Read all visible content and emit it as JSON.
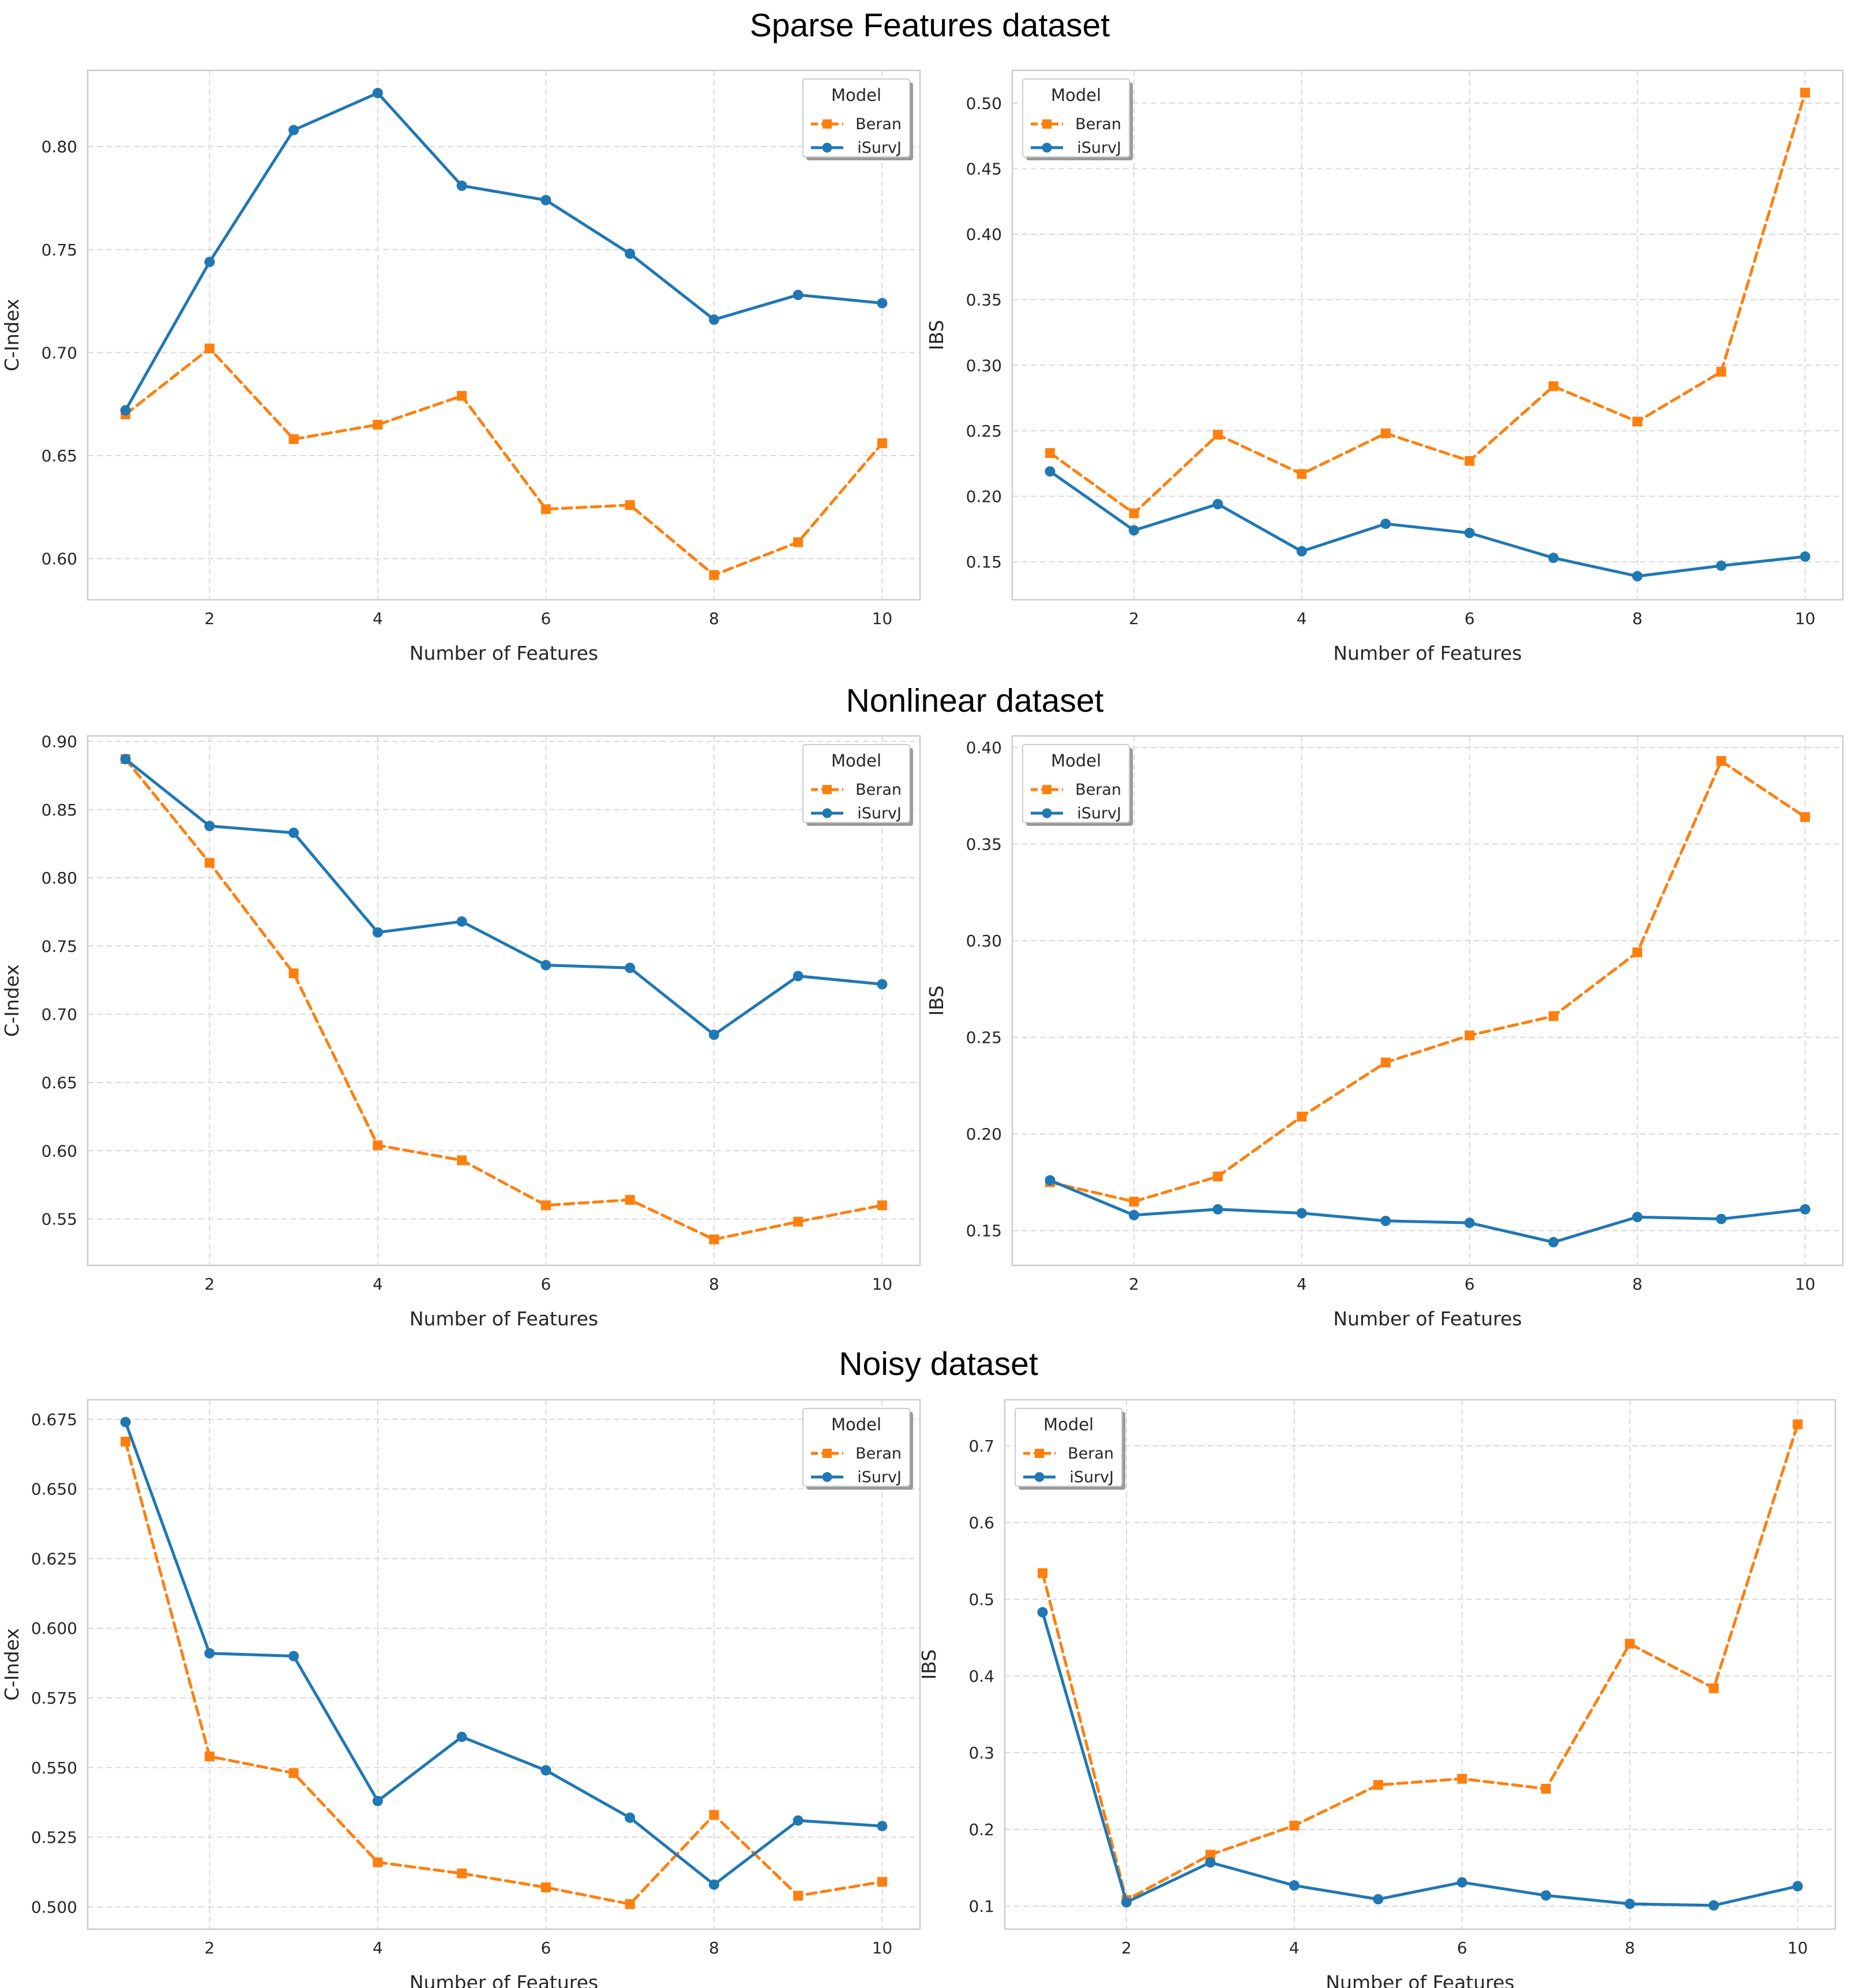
{
  "figure": {
    "sections": [
      "Sparse Features dataset",
      "Nonlinear dataset",
      "Noisy dataset"
    ]
  },
  "legend": {
    "title": "Model"
  },
  "chart_data": [
    {
      "type": "line",
      "section": "Sparse Features dataset",
      "title": "",
      "xlabel": "Number of Features",
      "ylabel": "C-Index",
      "x": [
        1,
        2,
        3,
        4,
        5,
        6,
        7,
        8,
        9,
        10
      ],
      "xticks": [
        2,
        4,
        6,
        8,
        10
      ],
      "xtick_labels": [
        "2",
        "4",
        "6",
        "8",
        "10"
      ],
      "yticks": [
        0.6,
        0.65,
        0.7,
        0.75,
        0.8
      ],
      "ytick_labels": [
        "0.60",
        "0.65",
        "0.70",
        "0.75",
        "0.80"
      ],
      "xlim": [
        0.55,
        10.45
      ],
      "ylim": [
        0.58,
        0.837
      ],
      "grid": true,
      "legend_position": "upper right",
      "series": [
        {
          "name": "Beran",
          "color": "#ff7f0e",
          "marker": "square",
          "linestyle": "dashed",
          "values": [
            0.67,
            0.702,
            0.658,
            0.665,
            0.679,
            0.624,
            0.626,
            0.592,
            0.608,
            0.656
          ]
        },
        {
          "name": "iSurvJ",
          "color": "#1f77b4",
          "marker": "circle",
          "linestyle": "solid",
          "values": [
            0.672,
            0.744,
            0.808,
            0.826,
            0.781,
            0.774,
            0.748,
            0.716,
            0.728,
            0.724
          ]
        }
      ]
    },
    {
      "type": "line",
      "section": "Sparse Features dataset",
      "title": "",
      "xlabel": "Number of Features",
      "ylabel": "IBS",
      "x": [
        1,
        2,
        3,
        4,
        5,
        6,
        7,
        8,
        9,
        10
      ],
      "xticks": [
        2,
        4,
        6,
        8,
        10
      ],
      "xtick_labels": [
        "2",
        "4",
        "6",
        "8",
        "10"
      ],
      "yticks": [
        0.15,
        0.2,
        0.25,
        0.3,
        0.35,
        0.4,
        0.45,
        0.5
      ],
      "ytick_labels": [
        "0.15",
        "0.20",
        "0.25",
        "0.30",
        "0.35",
        "0.40",
        "0.45",
        "0.50"
      ],
      "xlim": [
        0.55,
        10.45
      ],
      "ylim": [
        0.121,
        0.525
      ],
      "grid": true,
      "legend_position": "upper left",
      "series": [
        {
          "name": "Beran",
          "color": "#ff7f0e",
          "marker": "square",
          "linestyle": "dashed",
          "values": [
            0.233,
            0.187,
            0.247,
            0.217,
            0.248,
            0.227,
            0.284,
            0.257,
            0.295,
            0.508
          ]
        },
        {
          "name": "iSurvJ",
          "color": "#1f77b4",
          "marker": "circle",
          "linestyle": "solid",
          "values": [
            0.219,
            0.174,
            0.194,
            0.158,
            0.179,
            0.172,
            0.153,
            0.139,
            0.147,
            0.154
          ]
        }
      ]
    },
    {
      "type": "line",
      "section": "Nonlinear dataset",
      "title": "",
      "xlabel": "Number of Features",
      "ylabel": "C-Index",
      "x": [
        1,
        2,
        3,
        4,
        5,
        6,
        7,
        8,
        9,
        10
      ],
      "xticks": [
        2,
        4,
        6,
        8,
        10
      ],
      "xtick_labels": [
        "2",
        "4",
        "6",
        "8",
        "10"
      ],
      "yticks": [
        0.55,
        0.6,
        0.65,
        0.7,
        0.75,
        0.8,
        0.85,
        0.9
      ],
      "ytick_labels": [
        "0.55",
        "0.60",
        "0.65",
        "0.70",
        "0.75",
        "0.80",
        "0.85",
        "0.90"
      ],
      "xlim": [
        0.55,
        10.45
      ],
      "ylim": [
        0.516,
        0.904
      ],
      "grid": true,
      "legend_position": "upper right",
      "series": [
        {
          "name": "Beran",
          "color": "#ff7f0e",
          "marker": "square",
          "linestyle": "dashed",
          "values": [
            0.887,
            0.811,
            0.73,
            0.604,
            0.593,
            0.56,
            0.564,
            0.535,
            0.548,
            0.56
          ]
        },
        {
          "name": "iSurvJ",
          "color": "#1f77b4",
          "marker": "circle",
          "linestyle": "solid",
          "values": [
            0.887,
            0.838,
            0.833,
            0.76,
            0.768,
            0.736,
            0.734,
            0.685,
            0.728,
            0.722
          ]
        }
      ]
    },
    {
      "type": "line",
      "section": "Nonlinear dataset",
      "title": "",
      "xlabel": "Number of Features",
      "ylabel": "IBS",
      "x": [
        1,
        2,
        3,
        4,
        5,
        6,
        7,
        8,
        9,
        10
      ],
      "xticks": [
        2,
        4,
        6,
        8,
        10
      ],
      "xtick_labels": [
        "2",
        "4",
        "6",
        "8",
        "10"
      ],
      "yticks": [
        0.15,
        0.2,
        0.25,
        0.3,
        0.35,
        0.4
      ],
      "ytick_labels": [
        "0.15",
        "0.20",
        "0.25",
        "0.30",
        "0.35",
        "0.40"
      ],
      "xlim": [
        0.55,
        10.45
      ],
      "ylim": [
        0.132,
        0.406
      ],
      "grid": true,
      "legend_position": "upper left",
      "series": [
        {
          "name": "Beran",
          "color": "#ff7f0e",
          "marker": "square",
          "linestyle": "dashed",
          "values": [
            0.175,
            0.165,
            0.178,
            0.209,
            0.237,
            0.251,
            0.261,
            0.294,
            0.393,
            0.364
          ]
        },
        {
          "name": "iSurvJ",
          "color": "#1f77b4",
          "marker": "circle",
          "linestyle": "solid",
          "values": [
            0.176,
            0.158,
            0.161,
            0.159,
            0.155,
            0.154,
            0.144,
            0.157,
            0.156,
            0.161
          ]
        }
      ]
    },
    {
      "type": "line",
      "section": "Noisy dataset",
      "title": "",
      "xlabel": "Number of Features",
      "ylabel": "C-Index",
      "x": [
        1,
        2,
        3,
        4,
        5,
        6,
        7,
        8,
        9,
        10
      ],
      "xticks": [
        2,
        4,
        6,
        8,
        10
      ],
      "xtick_labels": [
        "2",
        "4",
        "6",
        "8",
        "10"
      ],
      "yticks": [
        0.5,
        0.525,
        0.55,
        0.575,
        0.6,
        0.625,
        0.65,
        0.675
      ],
      "ytick_labels": [
        "0.500",
        "0.525",
        "0.550",
        "0.575",
        "0.600",
        "0.625",
        "0.650",
        "0.675"
      ],
      "xlim": [
        0.55,
        10.45
      ],
      "ylim": [
        0.492,
        0.682
      ],
      "grid": true,
      "legend_position": "upper right",
      "series": [
        {
          "name": "Beran",
          "color": "#ff7f0e",
          "marker": "square",
          "linestyle": "dashed",
          "values": [
            0.667,
            0.554,
            0.548,
            0.516,
            0.512,
            0.507,
            0.501,
            0.533,
            0.504,
            0.509
          ]
        },
        {
          "name": "iSurvJ",
          "color": "#1f77b4",
          "marker": "circle",
          "linestyle": "solid",
          "values": [
            0.674,
            0.591,
            0.59,
            0.538,
            0.561,
            0.549,
            0.532,
            0.508,
            0.531,
            0.529
          ]
        }
      ]
    },
    {
      "type": "line",
      "section": "Noisy dataset",
      "title": "",
      "xlabel": "Number of Features",
      "ylabel": "IBS",
      "x": [
        1,
        2,
        3,
        4,
        5,
        6,
        7,
        8,
        9,
        10
      ],
      "xticks": [
        2,
        4,
        6,
        8,
        10
      ],
      "xtick_labels": [
        "2",
        "4",
        "6",
        "8",
        "10"
      ],
      "yticks": [
        0.1,
        0.2,
        0.3,
        0.4,
        0.5,
        0.6,
        0.7
      ],
      "ytick_labels": [
        "0.1",
        "0.2",
        "0.3",
        "0.4",
        "0.5",
        "0.6",
        "0.7"
      ],
      "xlim": [
        0.55,
        10.45
      ],
      "ylim": [
        0.07,
        0.76
      ],
      "grid": true,
      "legend_position": "upper left",
      "series": [
        {
          "name": "Beran",
          "color": "#ff7f0e",
          "marker": "square",
          "linestyle": "dashed",
          "values": [
            0.534,
            0.108,
            0.167,
            0.205,
            0.258,
            0.266,
            0.253,
            0.442,
            0.384,
            0.728
          ]
        },
        {
          "name": "iSurvJ",
          "color": "#1f77b4",
          "marker": "circle",
          "linestyle": "solid",
          "values": [
            0.483,
            0.105,
            0.157,
            0.127,
            0.109,
            0.131,
            0.114,
            0.103,
            0.101,
            0.126
          ]
        }
      ]
    }
  ]
}
